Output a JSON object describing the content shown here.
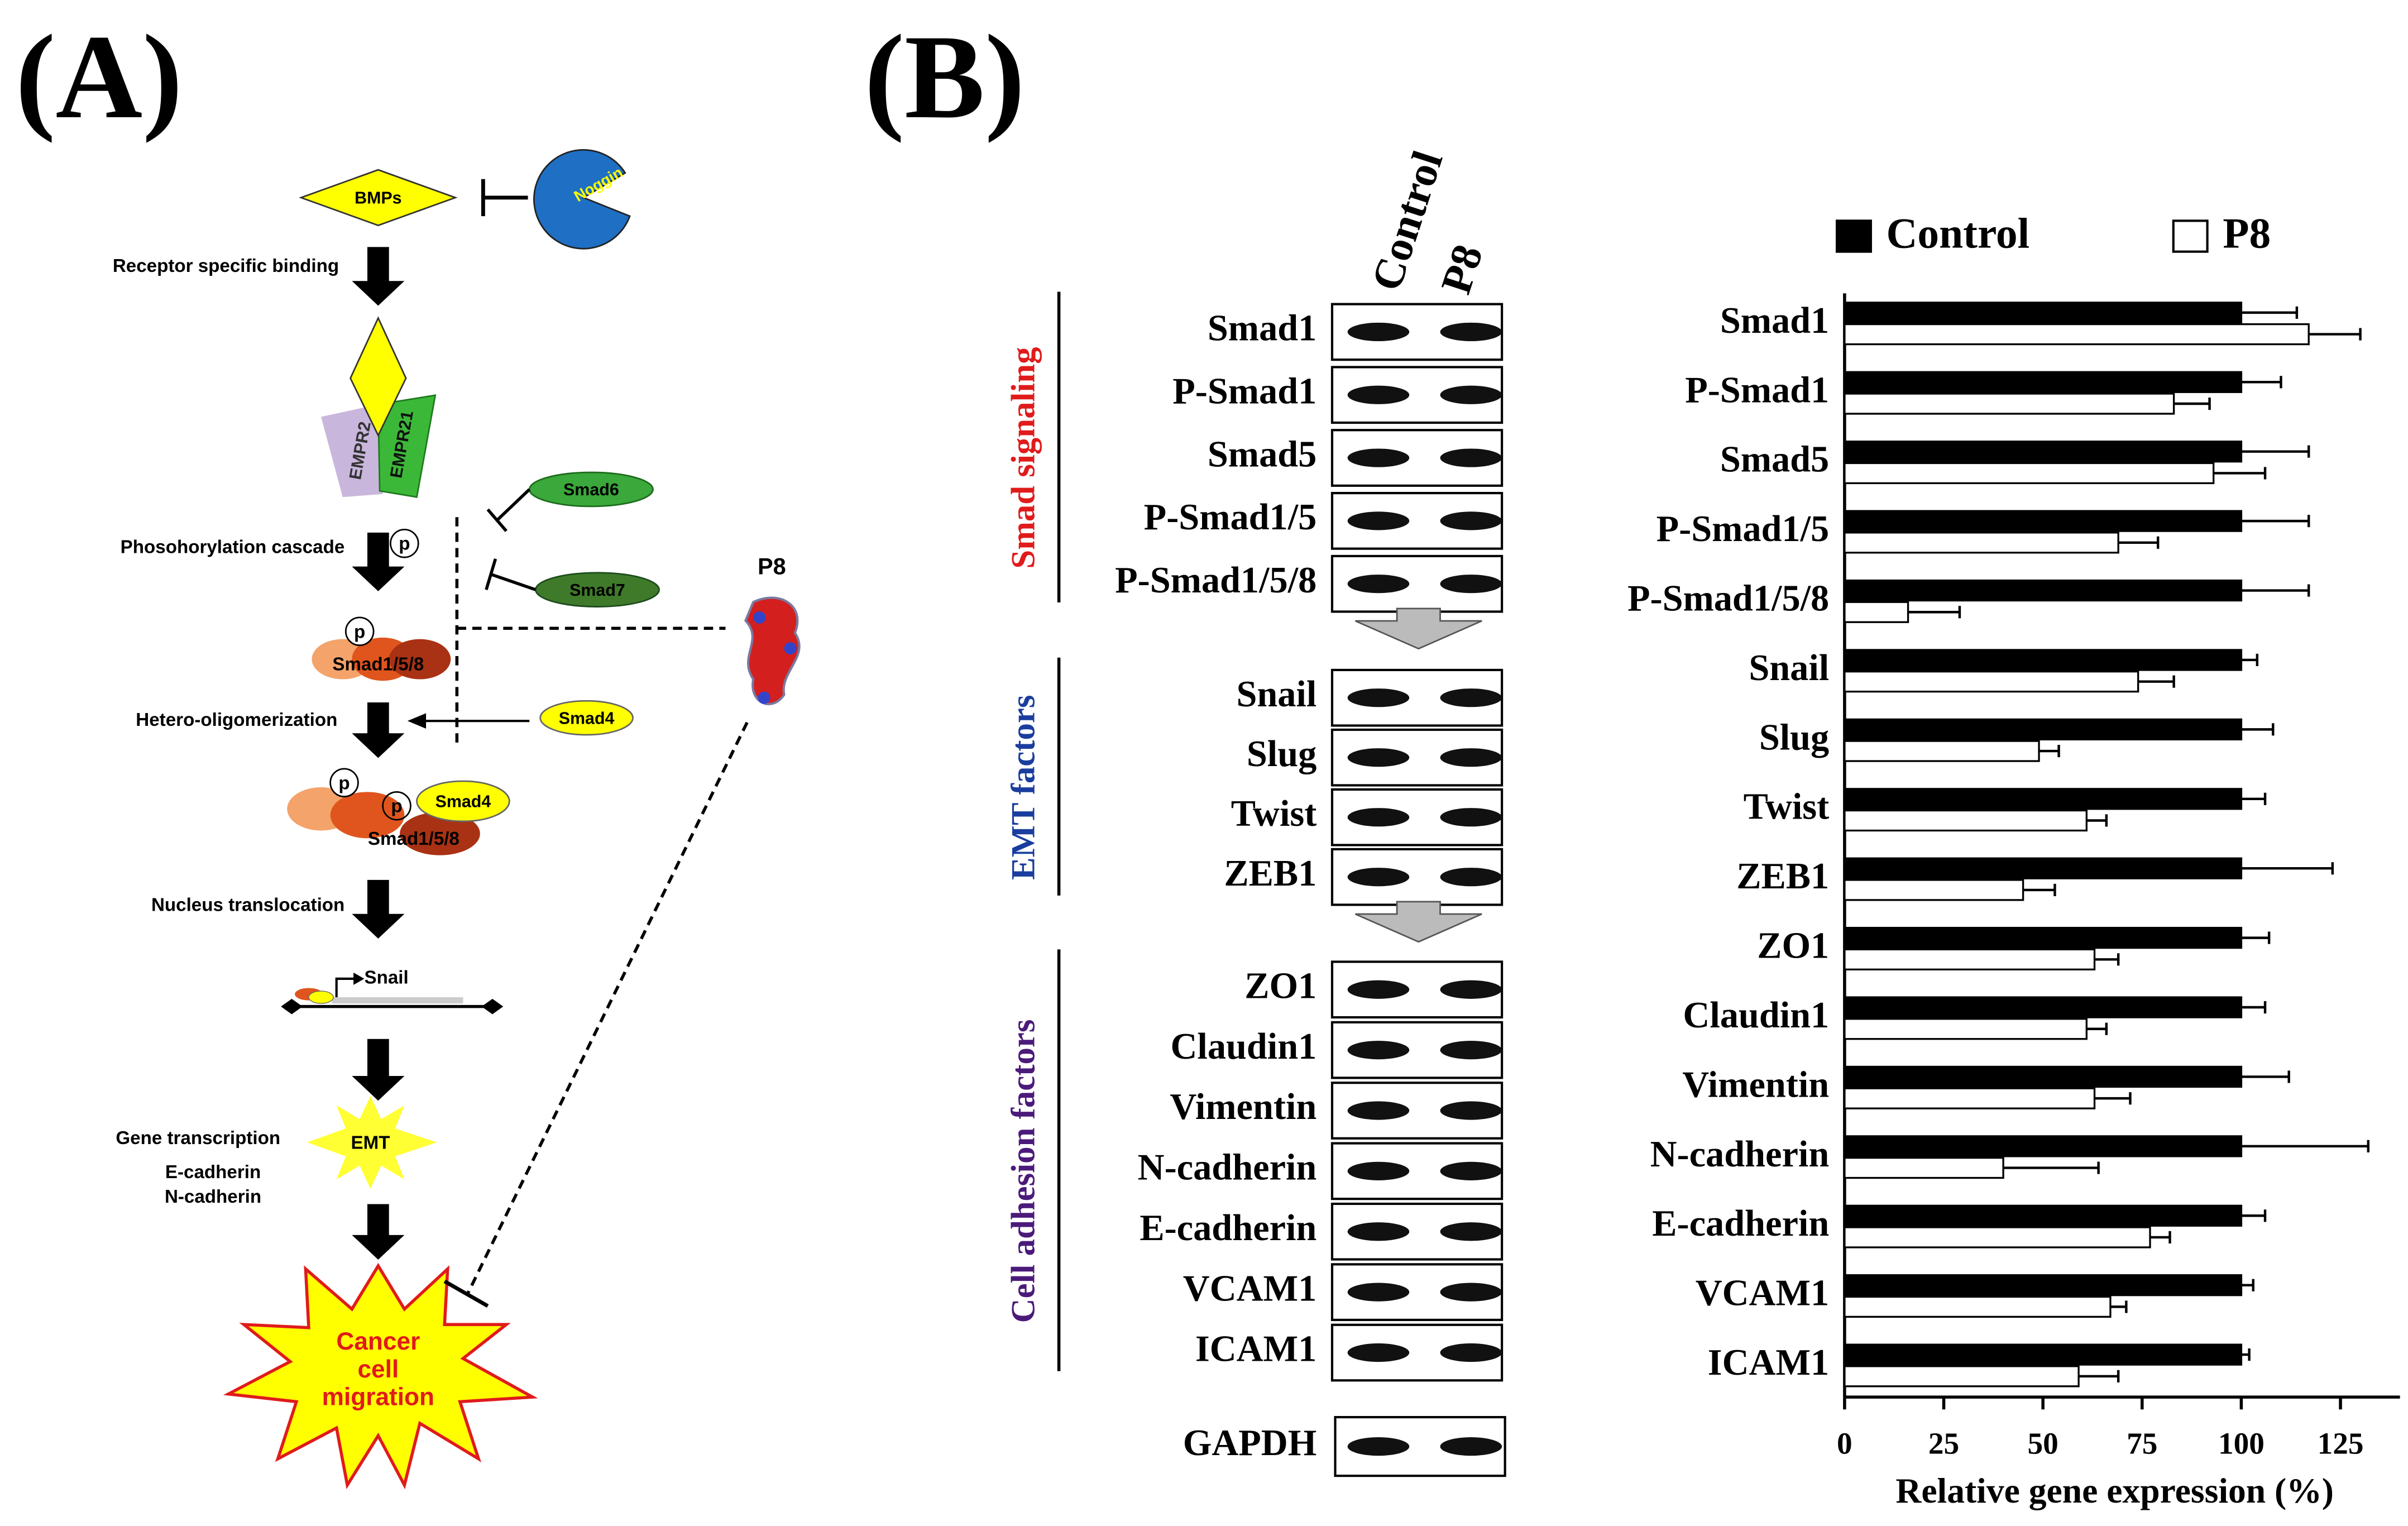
{
  "panel_a": {
    "label": "(A)",
    "bmps": "BMPs",
    "noggin": "Noggin",
    "step_binding": "Receptor specific binding",
    "receptor_1": "EMPR2",
    "receptor_2": "EMPR21",
    "smad6": "Smad6",
    "smad7": "Smad7",
    "step_phospho": "Phosohorylation cascade",
    "p_marker": "p",
    "smad158": "Smad1/5/8",
    "step_oligo": "Hetero-oligomerization",
    "smad4": "Smad4",
    "step_nucleus": "Nucleus translocation",
    "snail": "Snail",
    "step_transcription": "Gene transcription",
    "gene_1": "E-cadherin",
    "gene_2": "N-cadherin",
    "emt": "EMT",
    "outcome": [
      "Cancer",
      "cell",
      "migration"
    ],
    "p8": "P8"
  },
  "panel_b": {
    "label": "(B)",
    "lanes": [
      "Control",
      "P8"
    ],
    "groups": [
      {
        "name": "Smad signaling",
        "rows": [
          "Smad1",
          "P-Smad1",
          "Smad5",
          "P-Smad1/5",
          "P-Smad1/5/8"
        ]
      },
      {
        "name": "EMT factors",
        "rows": [
          "Snail",
          "Slug",
          "Twist",
          "ZEB1"
        ]
      },
      {
        "name": "Cell adhesion factors",
        "rows": [
          "ZO1",
          "Claudin1",
          "Vimentin",
          "N-cadherin",
          "E-cadherin",
          "VCAM1",
          "ICAM1"
        ]
      }
    ],
    "loading_control": "GAPDH"
  },
  "chart_data": {
    "type": "hbar",
    "x_label": "Relative gene expression (%)",
    "categories": [
      "Smad1",
      "P-Smad1",
      "Smad5",
      "P-Smad1/5",
      "P-Smad1/5/8",
      "Snail",
      "Slug",
      "Twist",
      "ZEB1",
      "ZO1",
      "Claudin1",
      "Vimentin",
      "N-cadherin",
      "E-cadherin",
      "VCAM1",
      "ICAM1"
    ],
    "series": [
      {
        "name": "Control",
        "color": "#000000",
        "values": [
          100,
          100,
          100,
          100,
          100,
          100,
          100,
          100,
          100,
          100,
          100,
          100,
          100,
          100,
          100,
          100
        ],
        "errors": [
          14,
          10,
          17,
          17,
          17,
          4,
          8,
          6,
          23,
          7,
          6,
          12,
          32,
          6,
          3,
          2
        ]
      },
      {
        "name": "P8",
        "color": "#ffffff",
        "values": [
          117,
          83,
          93,
          69,
          16,
          74,
          49,
          61,
          45,
          63,
          61,
          63,
          40,
          77,
          67,
          59
        ],
        "errors": [
          13,
          9,
          13,
          10,
          13,
          9,
          5,
          5,
          8,
          6,
          5,
          9,
          24,
          5,
          4,
          10
        ]
      }
    ],
    "xlim": [
      0,
      140
    ],
    "xticks": [
      0,
      25,
      50,
      75,
      100,
      125
    ]
  }
}
